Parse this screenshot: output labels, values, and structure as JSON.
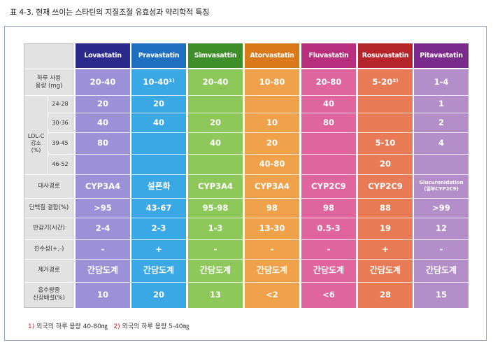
{
  "title": "표 4-3. 현재 쓰이는 스타틴의 지질조절 유효성과 약리학적 특징",
  "row_labels": {
    "dose": "하루 사용\n용량 (mg)",
    "ldl": "LDL-C\n감소\n(%)",
    "ldl_ranges": [
      "24-28",
      "30-36",
      "39-45",
      "46-52"
    ],
    "metabolism": "대사경로",
    "protein": "단백질 결합(%)",
    "halflife": "반감기(시간)",
    "hydro": "친수성(+,-)",
    "elimination": "제거경로",
    "absorption": "흡수량중\n신장배설(%)"
  },
  "drugs": [
    {
      "name": "Lovastatin",
      "dose": "20-40",
      "ldl": [
        "20",
        "40",
        "80",
        ""
      ],
      "metabolism": "CYP3A4",
      "protein": ">95",
      "halflife": "2-4",
      "hydro": "-",
      "elimination": "간담도계",
      "renal": "10"
    },
    {
      "name": "Pravastatin",
      "dose": "10-40¹⁾",
      "ldl": [
        "20",
        "40",
        "",
        ""
      ],
      "metabolism": "설폰화",
      "protein": "43-67",
      "halflife": "2-3",
      "hydro": "+",
      "elimination": "간담도계",
      "renal": "20"
    },
    {
      "name": "Simvasattin",
      "dose": "20-40",
      "ldl": [
        "",
        "20",
        "40",
        ""
      ],
      "metabolism": "CYP3A4",
      "protein": "95-98",
      "halflife": "1-3",
      "hydro": "-",
      "elimination": "간담도계",
      "renal": "13"
    },
    {
      "name": "Atorvastatin",
      "dose": "10-80",
      "ldl": [
        "",
        "10",
        "20",
        "40-80"
      ],
      "metabolism": "CYP3A4",
      "protein": "98",
      "halflife": "13-30",
      "hydro": "-",
      "elimination": "간담도계",
      "renal": "<2"
    },
    {
      "name": "Fluvastatin",
      "dose": "20-80",
      "ldl": [
        "40",
        "80",
        "",
        ""
      ],
      "metabolism": "CYP2C9",
      "protein": "98",
      "halflife": "0.5-3",
      "hydro": "-",
      "elimination": "간담도계",
      "renal": "<6"
    },
    {
      "name": "Rosuvastatin",
      "dose": "5-20²⁾",
      "ldl": [
        "",
        "",
        "5-10",
        "20"
      ],
      "metabolism": "CYP2C9",
      "protein": "88",
      "halflife": "19",
      "hydro": "+",
      "elimination": "간담도계",
      "renal": "28"
    },
    {
      "name": "Pitavastatin",
      "dose": "1-4",
      "ldl": [
        "1",
        "2",
        "4",
        ""
      ],
      "metabolism": "Glucuronidation\n(일부CYP2C9)",
      "protein": ">99",
      "halflife": "12",
      "hydro": "-",
      "elimination": "간담도계",
      "renal": "15"
    }
  ],
  "colors": {
    "heads": [
      "#2b2a8c",
      "#1e6fc0",
      "#3e8f2a",
      "#d9791a",
      "#b72f7c",
      "#b5242b",
      "#7a2a8a"
    ],
    "bodies": [
      "#9c90d6",
      "#3ba8e6",
      "#8ec85a",
      "#f0a24a",
      "#e0659e",
      "#e87b56",
      "#b48ec8"
    ]
  },
  "notes": {
    "n1_mark": "1)",
    "n1_text": "외국의 하루 용량 40-80㎎",
    "n2_mark": "2)",
    "n2_text": "외국의 하루 용량 5-40㎎"
  }
}
